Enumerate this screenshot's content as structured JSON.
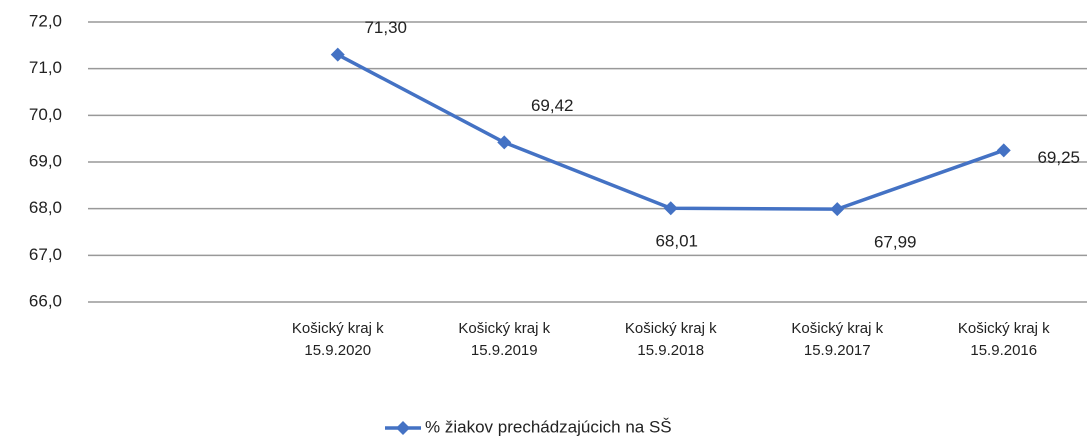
{
  "chart_data": {
    "type": "line",
    "categories": [
      null,
      "Košický kraj k 15.9.2020",
      "Košický kraj k 15.9.2019",
      "Košický kraj k 15.9.2018",
      "Košický kraj k 15.9.2017",
      "Košický kraj k 15.9.2016"
    ],
    "series": [
      {
        "name": "% žiakov prechádzajúcich na SŠ",
        "color": "#4472c4",
        "values": [
          null,
          71.3,
          69.42,
          68.01,
          67.99,
          69.25
        ],
        "value_labels": [
          null,
          "71,30",
          "69,42",
          "68,01",
          "67,99",
          "69,25"
        ]
      }
    ],
    "ylim": [
      66,
      72
    ],
    "yticks": [
      {
        "value": 66,
        "label": "66,0"
      },
      {
        "value": 67,
        "label": "67,0"
      },
      {
        "value": 68,
        "label": "68,0"
      },
      {
        "value": 69,
        "label": "69,0"
      },
      {
        "value": 70,
        "label": "70,0"
      },
      {
        "value": 71,
        "label": "71,0"
      },
      {
        "value": 72,
        "label": "72,0"
      }
    ],
    "grid": true,
    "legend": "bottom"
  }
}
